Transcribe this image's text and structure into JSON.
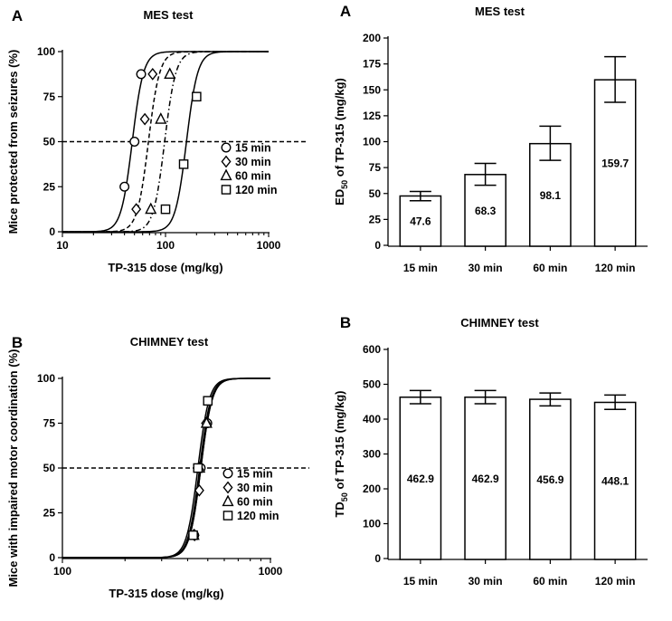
{
  "chart_data": [
    {
      "id": "mes-curves",
      "type": "line",
      "panel_letter": "A",
      "title": "MES test",
      "xlabel": "TP-315 dose (mg/kg)",
      "ylabel": "Mice protected from seizures (%)",
      "xscale": "log",
      "xlim": [
        10,
        1000
      ],
      "ylim": [
        0,
        100
      ],
      "xticks": [
        10,
        100,
        1000
      ],
      "xtick_labels": [
        "10",
        "100",
        "1000"
      ],
      "yticks": [
        0,
        25,
        50,
        75,
        100
      ],
      "ytick_labels": [
        "0",
        "25",
        "50",
        "75",
        "100"
      ],
      "reference_line_y": 50,
      "hill_slope": 8,
      "series": [
        {
          "name": "15 min",
          "marker": "circle",
          "line": "solid",
          "ed50": 47.6,
          "x": [
            40,
            50,
            58
          ],
          "y": [
            25,
            50,
            87.5
          ]
        },
        {
          "name": "30 min",
          "marker": "diamond",
          "line": "dashed",
          "ed50": 68.3,
          "x": [
            52,
            63,
            75
          ],
          "y": [
            12.5,
            62.5,
            87.5
          ]
        },
        {
          "name": "60 min",
          "marker": "triangle",
          "line": "dashdot",
          "ed50": 98.1,
          "x": [
            72,
            90,
            110
          ],
          "y": [
            12.5,
            62.5,
            87.5
          ]
        },
        {
          "name": "120 min",
          "marker": "square",
          "line": "solid",
          "ed50": 159.7,
          "x": [
            100,
            150,
            200
          ],
          "y": [
            12.5,
            37.5,
            75
          ]
        }
      ],
      "legend_position": "bottom-right"
    },
    {
      "id": "mes-bars",
      "type": "bar",
      "panel_letter": "A",
      "title": "MES test",
      "ylabel_main": "ED",
      "ylabel_sub": "50",
      "ylabel_rest": " of TP-315 (mg/kg)",
      "categories": [
        "15 min",
        "30 min",
        "60 min",
        "120 min"
      ],
      "values": [
        47.6,
        68.3,
        98.1,
        159.7
      ],
      "value_labels": [
        "47.6",
        "68.3",
        "98.1",
        "159.7"
      ],
      "error_upper": [
        52,
        79,
        115,
        182
      ],
      "error_lower": [
        43,
        58,
        82,
        138
      ],
      "ylim": [
        0,
        200
      ],
      "yticks": [
        0,
        25,
        50,
        75,
        100,
        125,
        150,
        175,
        200
      ],
      "ytick_labels": [
        "0",
        "25",
        "50",
        "75",
        "100",
        "125",
        "150",
        "175",
        "200"
      ]
    },
    {
      "id": "chimney-curves",
      "type": "line",
      "panel_letter": "B",
      "title": "CHIMNEY test",
      "xlabel": "TP-315 dose (mg/kg)",
      "ylabel": "Mice with impaired motor coordination (%)",
      "xscale": "log",
      "xlim": [
        100,
        1000
      ],
      "ylim": [
        0,
        100
      ],
      "xticks": [
        100,
        1000
      ],
      "xtick_labels": [
        "100",
        "1000"
      ],
      "yticks": [
        0,
        25,
        50,
        75,
        100
      ],
      "ytick_labels": [
        "0",
        "25",
        "50",
        "75",
        "100"
      ],
      "reference_line_y": 50,
      "hill_slope": 16,
      "series": [
        {
          "name": "15 min",
          "marker": "circle",
          "line": "solid",
          "ed50": 462.9,
          "x": [
            430,
            462,
            497
          ],
          "y": [
            12.5,
            50,
            75
          ]
        },
        {
          "name": "30 min",
          "marker": "diamond",
          "line": "solid",
          "ed50": 462.9,
          "x": [
            432,
            455,
            490
          ],
          "y": [
            12.5,
            37.5,
            75
          ]
        },
        {
          "name": "60 min",
          "marker": "triangle",
          "line": "solid",
          "ed50": 456.9,
          "x": [
            428,
            456,
            493
          ],
          "y": [
            12.5,
            50,
            75
          ]
        },
        {
          "name": "120 min",
          "marker": "square",
          "line": "solid",
          "ed50": 448.1,
          "x": [
            425,
            448,
            500
          ],
          "y": [
            12.5,
            50,
            87.5
          ]
        }
      ],
      "legend_position": "bottom-right"
    },
    {
      "id": "chimney-bars",
      "type": "bar",
      "panel_letter": "B",
      "title": "CHIMNEY test",
      "ylabel_main": "TD",
      "ylabel_sub": "50",
      "ylabel_rest": " of TP-315 (mg/kg)",
      "categories": [
        "15 min",
        "30 min",
        "60 min",
        "120 min"
      ],
      "values": [
        462.9,
        462.9,
        456.9,
        448.1
      ],
      "value_labels": [
        "462.9",
        "462.9",
        "456.9",
        "448.1"
      ],
      "error_upper": [
        482,
        482,
        475,
        469
      ],
      "error_lower": [
        444,
        444,
        438,
        428
      ],
      "ylim": [
        0,
        600
      ],
      "yticks": [
        0,
        100,
        200,
        300,
        400,
        500,
        600
      ],
      "ytick_labels": [
        "0",
        "100",
        "200",
        "300",
        "400",
        "500",
        "600"
      ]
    }
  ]
}
